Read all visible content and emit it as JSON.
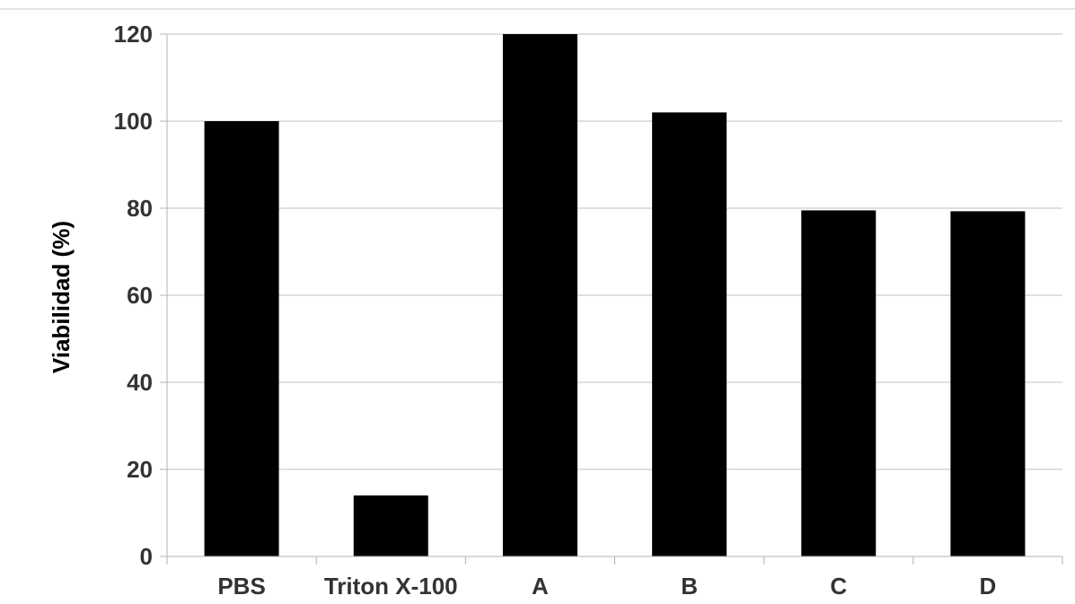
{
  "chart_data": {
    "type": "bar",
    "title": "",
    "xlabel": "",
    "ylabel": "Viabilidad (%)",
    "categories": [
      "PBS",
      "Triton X-100",
      "A",
      "B",
      "C",
      "D"
    ],
    "values": [
      100,
      14,
      120,
      102,
      79.5,
      79.3
    ],
    "ylim": [
      0,
      120
    ],
    "yticks": [
      0,
      20,
      40,
      60,
      80,
      100,
      120
    ],
    "grid": true,
    "legend": "none",
    "colors": {
      "bar": "#000000",
      "grid": "#c0c0c0",
      "axis": "#b3b3b3",
      "tick_text": "#333333"
    }
  }
}
